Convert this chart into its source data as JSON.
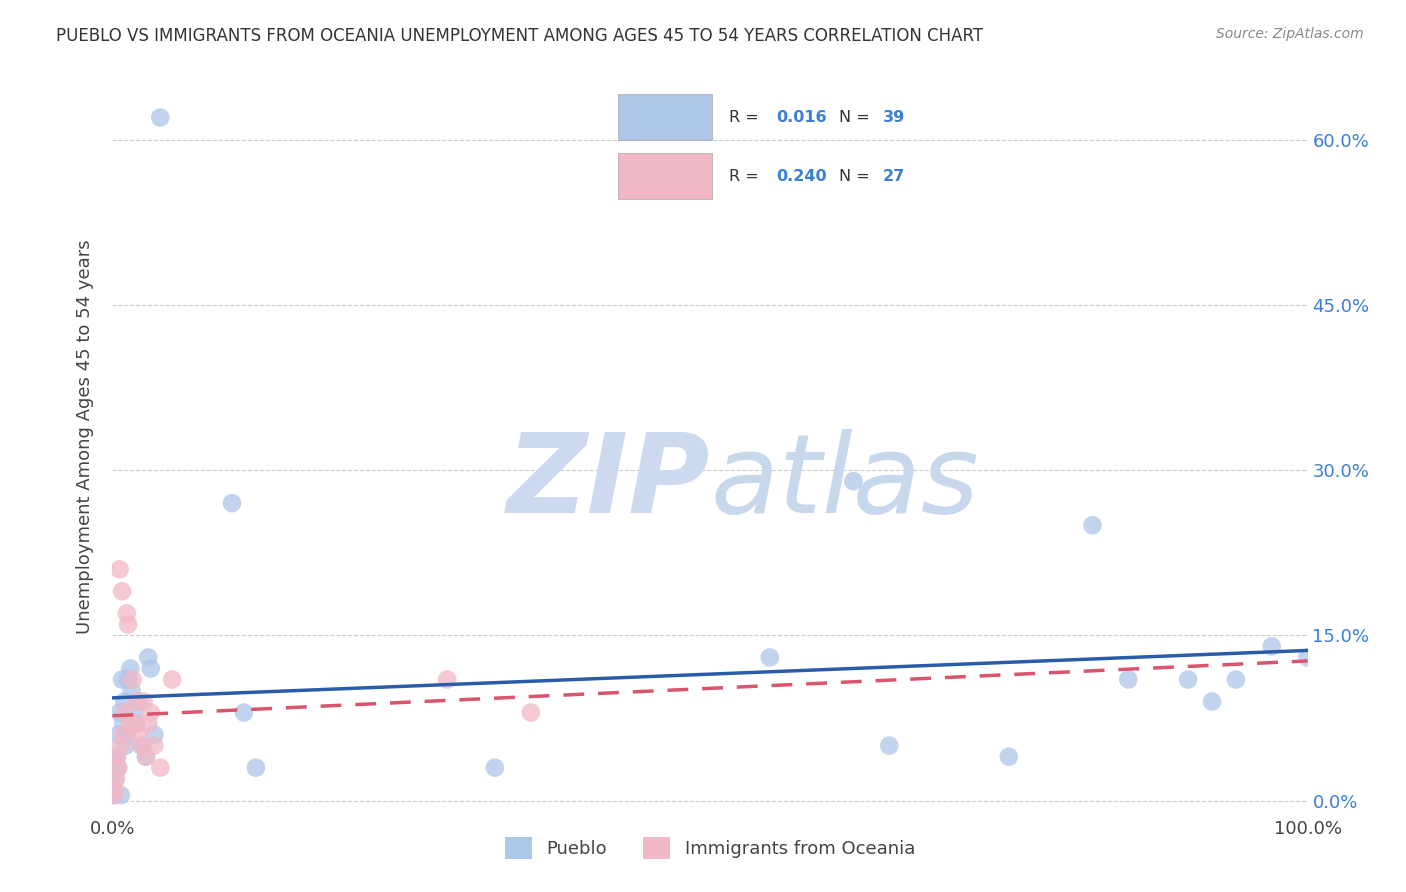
{
  "title": "PUEBLO VS IMMIGRANTS FROM OCEANIA UNEMPLOYMENT AMONG AGES 45 TO 54 YEARS CORRELATION CHART",
  "source": "Source: ZipAtlas.com",
  "ylabel_label": "Unemployment Among Ages 45 to 54 years",
  "xlim": [
    0,
    1.0
  ],
  "ylim": [
    -0.01,
    0.67
  ],
  "pueblo_color": "#aec6e8",
  "oceania_color": "#f2b8c6",
  "pueblo_line_color": "#2a5caa",
  "oceania_line_color": "#d9546e",
  "legend_color": "#3a7fd5",
  "pueblo_R": "0.016",
  "pueblo_N": "39",
  "oceania_R": "0.240",
  "oceania_N": "27",
  "watermark_zip_color": "#ccd9ee",
  "watermark_atlas_color": "#c8d8ec",
  "background_color": "#ffffff",
  "pueblo_x": [
    0.001,
    0.002,
    0.003,
    0.004,
    0.005,
    0.006,
    0.007,
    0.008,
    0.009,
    0.01,
    0.011,
    0.012,
    0.013,
    0.015,
    0.016,
    0.018,
    0.02,
    0.022,
    0.025,
    0.028,
    0.03,
    0.032,
    0.035,
    0.04,
    0.1,
    0.11,
    0.12,
    0.32,
    0.55,
    0.62,
    0.65,
    0.75,
    0.82,
    0.85,
    0.9,
    0.92,
    0.94,
    0.97,
    1.0
  ],
  "pueblo_y": [
    0.005,
    0.02,
    0.04,
    0.03,
    0.06,
    0.08,
    0.005,
    0.11,
    0.07,
    0.09,
    0.05,
    0.06,
    0.11,
    0.12,
    0.1,
    0.08,
    0.07,
    0.09,
    0.05,
    0.04,
    0.13,
    0.12,
    0.06,
    0.62,
    0.27,
    0.08,
    0.03,
    0.03,
    0.13,
    0.29,
    0.05,
    0.04,
    0.25,
    0.11,
    0.11,
    0.09,
    0.11,
    0.14,
    0.13
  ],
  "oceania_x": [
    0.001,
    0.002,
    0.003,
    0.004,
    0.005,
    0.006,
    0.007,
    0.008,
    0.009,
    0.01,
    0.012,
    0.013,
    0.015,
    0.017,
    0.019,
    0.02,
    0.022,
    0.024,
    0.026,
    0.028,
    0.03,
    0.032,
    0.035,
    0.04,
    0.05,
    0.28,
    0.35
  ],
  "oceania_y": [
    0.005,
    0.01,
    0.02,
    0.04,
    0.03,
    0.21,
    0.05,
    0.19,
    0.06,
    0.08,
    0.17,
    0.16,
    0.07,
    0.11,
    0.07,
    0.09,
    0.06,
    0.05,
    0.09,
    0.04,
    0.07,
    0.08,
    0.05,
    0.03,
    0.11,
    0.11,
    0.08
  ],
  "ytick_vals": [
    0.0,
    0.15,
    0.3,
    0.45,
    0.6
  ],
  "ytick_labels": [
    "0.0%",
    "15.0%",
    "30.0%",
    "45.0%",
    "60.0%"
  ],
  "xtick_vals": [
    0.0,
    1.0
  ],
  "xtick_labels": [
    "0.0%",
    "100.0%"
  ]
}
